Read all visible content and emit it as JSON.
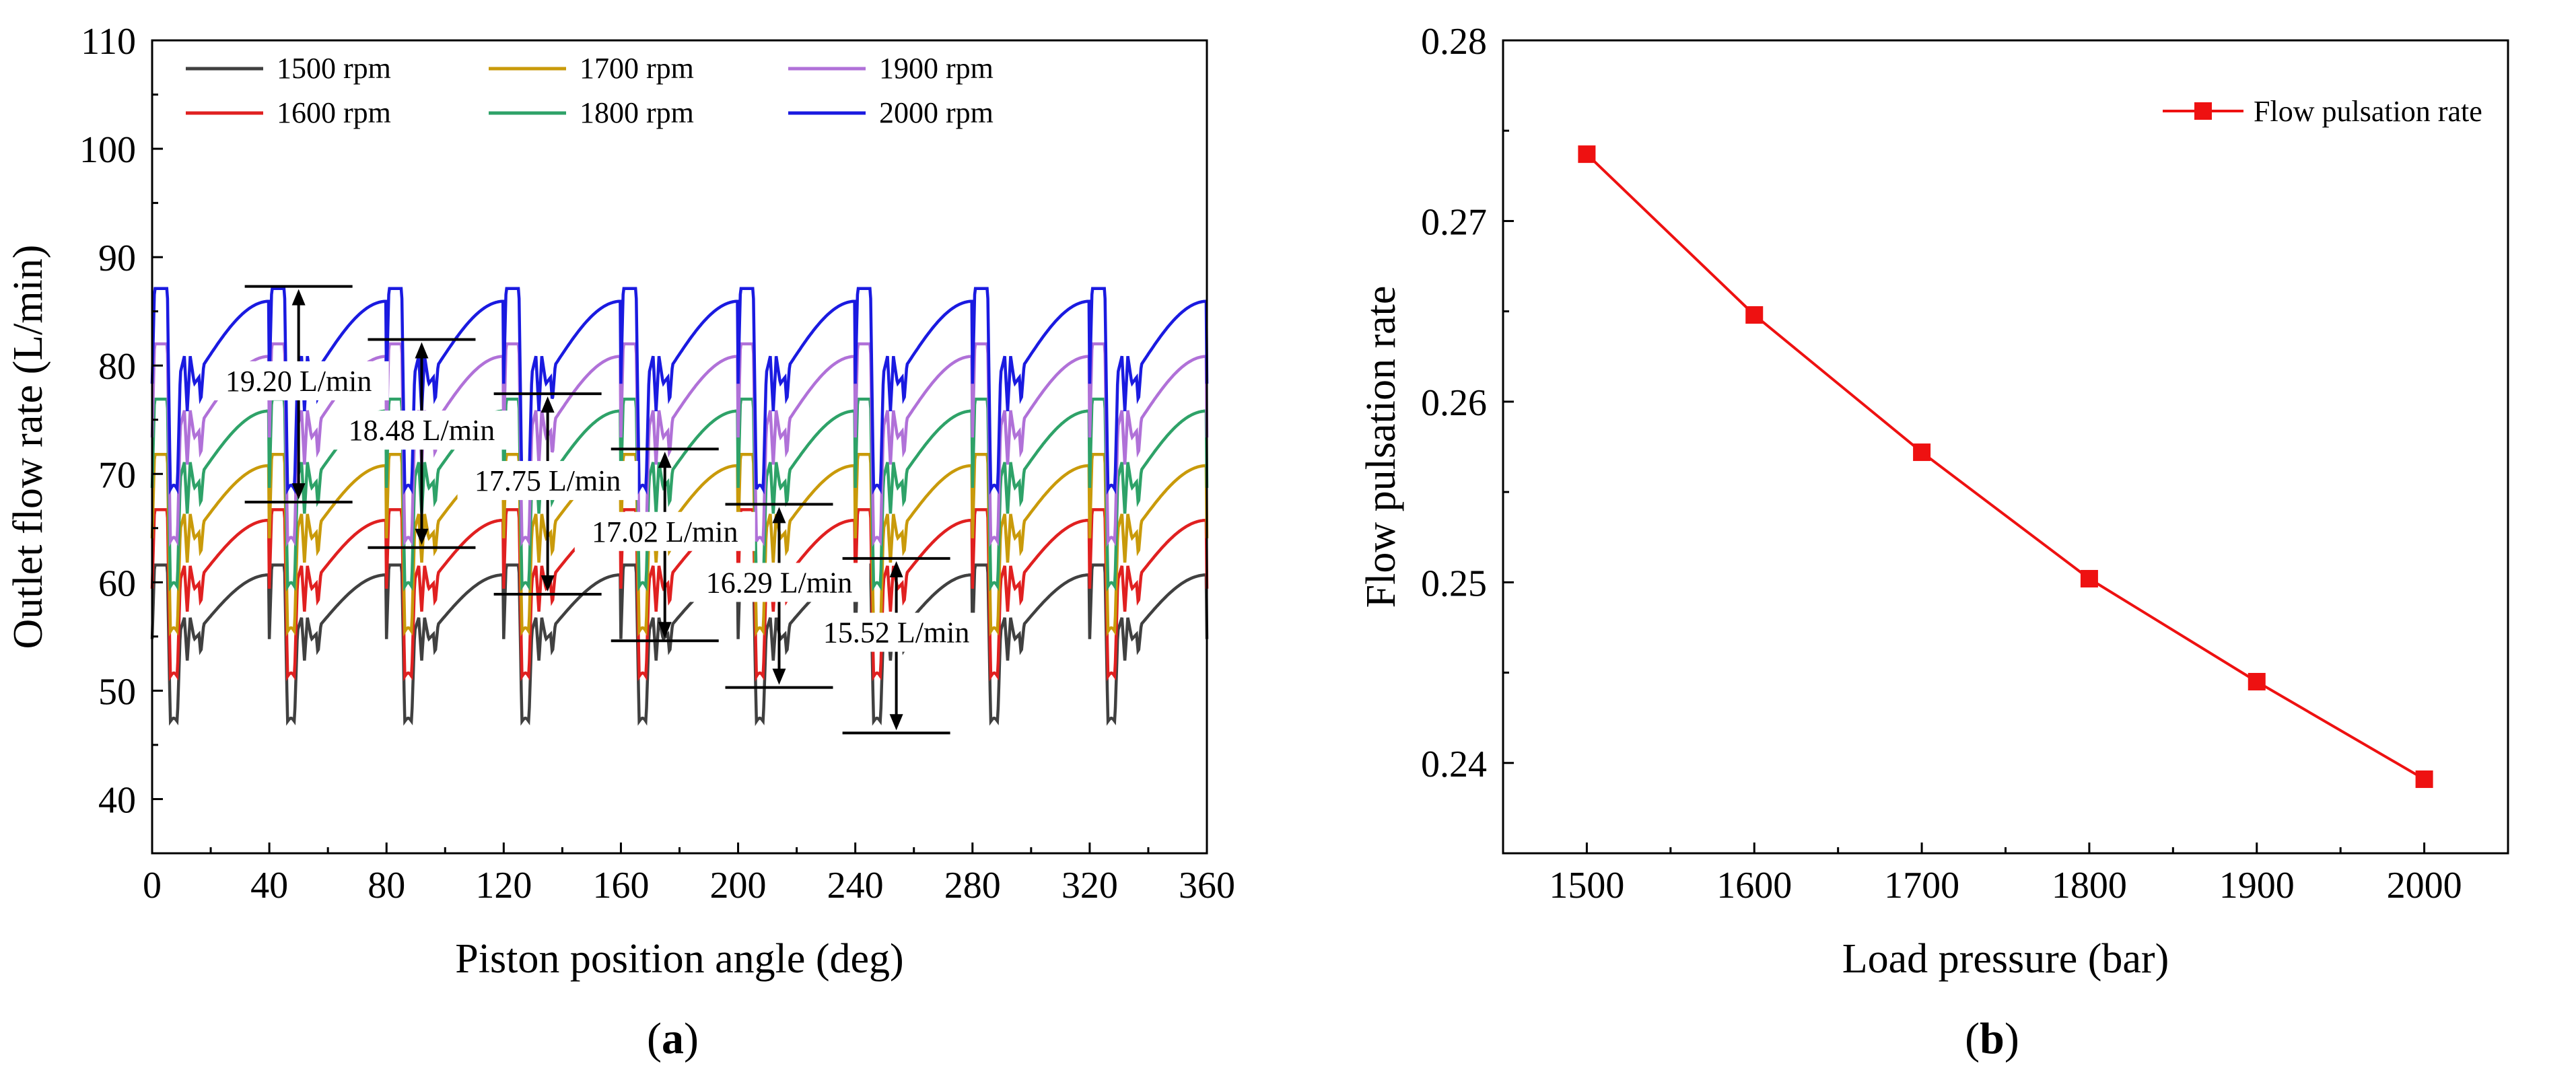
{
  "chart_data": [
    {
      "type": "line",
      "panel_label": "a",
      "title": "",
      "xlabel": "Piston position angle (deg)",
      "ylabel": "Outlet flow rate (L/min)",
      "xlim": [
        0,
        360
      ],
      "ylim": [
        35,
        110
      ],
      "xticks": [
        0,
        40,
        80,
        120,
        160,
        200,
        240,
        280,
        320,
        360
      ],
      "yticks": [
        40,
        50,
        60,
        70,
        80,
        90,
        100,
        110
      ],
      "grid": false,
      "legend_position": "top-left",
      "period_deg": 40,
      "series": [
        {
          "name": "1500 rpm",
          "color": "#404040",
          "max": 61.6,
          "min": 46.4
        },
        {
          "name": "1600 rpm",
          "color": "#e02020",
          "max": 66.7,
          "min": 50.5
        },
        {
          "name": "1700 rpm",
          "color": "#c99a0a",
          "max": 71.8,
          "min": 54.6
        },
        {
          "name": "1800 rpm",
          "color": "#2ea268",
          "max": 76.9,
          "min": 58.7
        },
        {
          "name": "1900 rpm",
          "color": "#b071d8",
          "max": 82.0,
          "min": 62.8
        },
        {
          "name": "2000 rpm",
          "color": "#1a1ae0",
          "max": 87.1,
          "min": 67.6
        }
      ],
      "annotations": [
        {
          "text": "19.20 L/min",
          "x": 50,
          "top": 87.3,
          "bottom": 67.4
        },
        {
          "text": "18.48 L/min",
          "x": 92,
          "top": 82.4,
          "bottom": 63.2
        },
        {
          "text": "17.75 L/min",
          "x": 135,
          "top": 77.4,
          "bottom": 58.9
        },
        {
          "text": "17.02 L/min",
          "x": 175,
          "top": 72.3,
          "bottom": 54.6
        },
        {
          "text": "16.29 L/min",
          "x": 214,
          "top": 67.2,
          "bottom": 50.3
        },
        {
          "text": "15.52 L/min",
          "x": 254,
          "top": 62.2,
          "bottom": 46.1
        }
      ]
    },
    {
      "type": "line",
      "panel_label": "b",
      "title": "",
      "xlabel": "Load pressure (bar)",
      "ylabel": "Flow pulsation rate",
      "x": [
        1500,
        1600,
        1700,
        1800,
        1900,
        2000
      ],
      "xlim": [
        1450,
        2050
      ],
      "ylim": [
        0.235,
        0.28
      ],
      "xticks": [
        1500,
        1600,
        1700,
        1800,
        1900,
        2000
      ],
      "yticks": [
        0.24,
        0.25,
        0.26,
        0.27,
        0.28
      ],
      "grid": false,
      "legend_position": "top-right",
      "series": [
        {
          "name": "Flow pulsation rate",
          "color": "#ee1111",
          "marker": "square",
          "values": [
            0.2737,
            0.2648,
            0.2572,
            0.2502,
            0.2445,
            0.2391
          ]
        }
      ]
    }
  ]
}
